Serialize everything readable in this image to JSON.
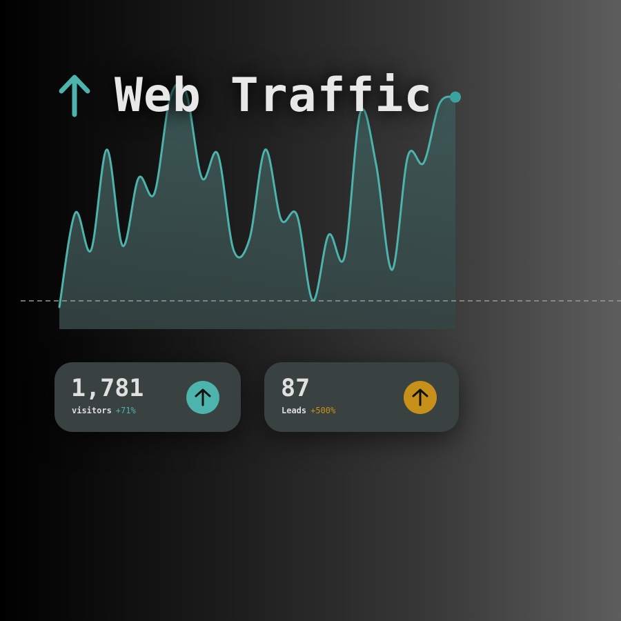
{
  "title": "Web Traffic",
  "colors": {
    "accent_teal": "#4db3ad",
    "accent_gold": "#c7901a",
    "area_fill": "#3f5656",
    "baseline": "#9a9a9a"
  },
  "icons": {
    "title": "arrow-up-icon",
    "visitors_badge": "arrow-up-icon",
    "leads_badge": "arrow-up-icon"
  },
  "stats": {
    "visitors": {
      "value": "1,781",
      "label": "visitors",
      "change": "+71%"
    },
    "leads": {
      "value": "87",
      "label": "Leads",
      "change": "+500%"
    }
  },
  "chart_data": {
    "type": "area",
    "title": "Web Traffic",
    "xlabel": "",
    "ylabel": "",
    "grid": false,
    "baseline_dashed": true,
    "ylim": [
      0,
      100
    ],
    "series": [
      {
        "values": [
          0,
          43,
          26,
          72,
          28,
          59,
          52,
          96,
          98,
          59,
          70,
          26,
          31,
          72,
          40,
          42,
          3,
          33,
          23,
          89,
          65,
          17,
          69,
          66,
          93,
          96
        ]
      }
    ],
    "last_point_marker": true
  }
}
